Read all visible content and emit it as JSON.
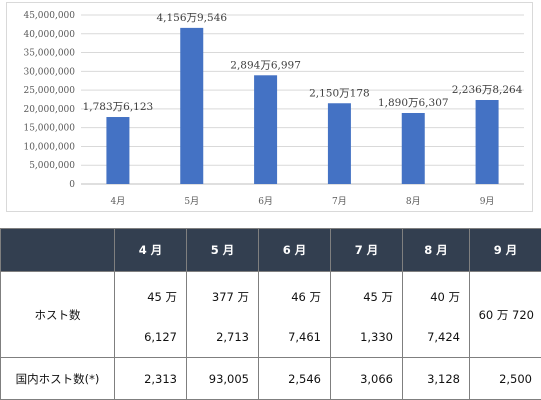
{
  "chart_data": {
    "type": "bar",
    "categories": [
      "4月",
      "5月",
      "6月",
      "7月",
      "8月",
      "9月"
    ],
    "values": [
      17836123,
      41569546,
      28946997,
      21500178,
      18906307,
      22368264
    ],
    "data_labels": [
      "1,783万6,123",
      "4,156万9,546",
      "2,894万6,997",
      "2,150万178",
      "1,890万6,307",
      "2,236万8,264"
    ],
    "y_ticks": [
      "0",
      "5,000,000",
      "10,000,000",
      "15,000,000",
      "20,000,000",
      "25,000,000",
      "30,000,000",
      "35,000,000",
      "40,000,000",
      "45,000,000"
    ],
    "ylim": [
      0,
      45000000
    ],
    "grid": true,
    "bar_color": "#4472c4",
    "title": "",
    "xlabel": "",
    "ylabel": ""
  },
  "table": {
    "headers": [
      "",
      "4 月",
      "5 月",
      "6 月",
      "7 月",
      "8 月",
      "9 月"
    ],
    "hosts_label": "ホスト数",
    "hosts_top": [
      "45 万",
      "377 万",
      "46 万",
      "45 万",
      "40 万"
    ],
    "hosts_bottom": [
      "6,127",
      "2,713",
      "7,461",
      "1,330",
      "7,424"
    ],
    "hosts_sep": "60 万 720",
    "domestic_label": "国内ホスト数(*)",
    "domestic": [
      "2,313",
      "93,005",
      "2,546",
      "3,066",
      "3,128",
      "2,500"
    ]
  },
  "colors": {
    "header_bg": "#333f50",
    "grid": "#d9d9d9",
    "axis": "#bfbfbf"
  }
}
